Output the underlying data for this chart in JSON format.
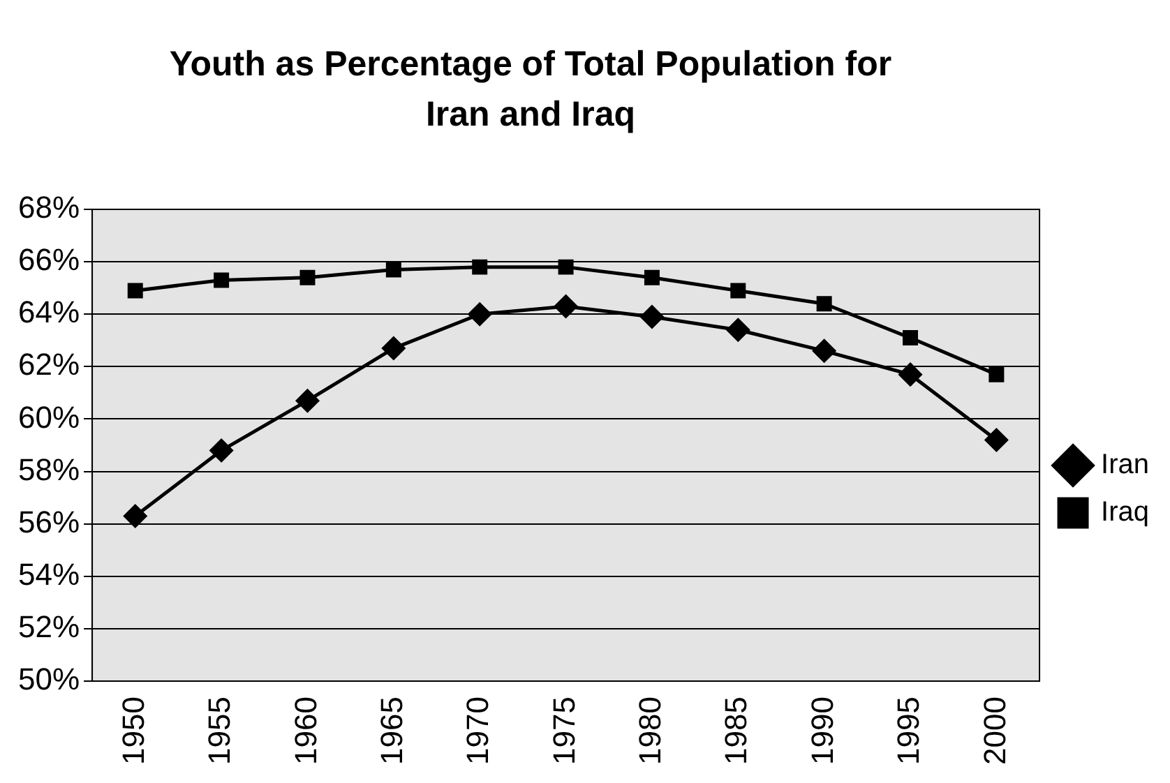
{
  "chart_data": {
    "type": "line",
    "title": "Youth as Percentage  of Total Population for Iran and Iraq",
    "categories": [
      "1950",
      "1955",
      "1960",
      "1965",
      "1970",
      "1975",
      "1980",
      "1985",
      "1990",
      "1995",
      "2000"
    ],
    "series": [
      {
        "name": "Iran",
        "color": "#000000",
        "marker": "diamond",
        "values": [
          56.3,
          58.8,
          60.7,
          62.7,
          64.0,
          64.3,
          63.9,
          63.4,
          62.6,
          61.7,
          59.2
        ]
      },
      {
        "name": "Iraq",
        "color": "#000000",
        "marker": "square",
        "values": [
          64.9,
          65.3,
          65.4,
          65.7,
          65.8,
          65.8,
          65.4,
          64.9,
          64.4,
          63.1,
          61.7
        ]
      }
    ],
    "ylim": [
      50,
      68
    ],
    "yticks": [
      {
        "value": 50,
        "label": "50%"
      },
      {
        "value": 52,
        "label": "52%"
      },
      {
        "value": 54,
        "label": "54%"
      },
      {
        "value": 56,
        "label": "56%"
      },
      {
        "value": 58,
        "label": "58%"
      },
      {
        "value": 60,
        "label": "60%"
      },
      {
        "value": 62,
        "label": "62%"
      },
      {
        "value": 64,
        "label": "64%"
      },
      {
        "value": 66,
        "label": "66%"
      },
      {
        "value": 68,
        "label": "68%"
      }
    ],
    "grid": "y",
    "legend": "right",
    "line_style": "solid"
  }
}
